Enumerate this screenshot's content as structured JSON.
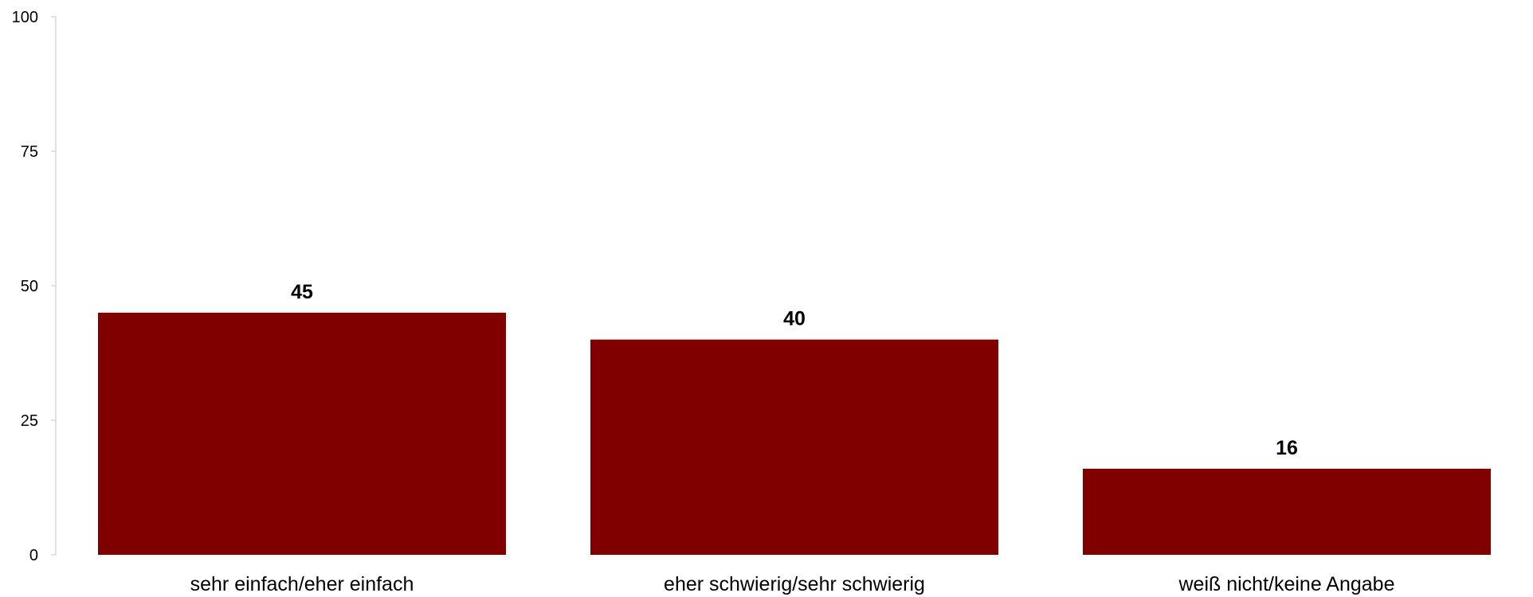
{
  "chart_data": {
    "type": "bar",
    "title": "",
    "xlabel": "",
    "ylabel": "",
    "categories": [
      "sehr einfach/eher einfach",
      "eher schwierig/sehr schwierig",
      "weiß nicht/keine Angabe"
    ],
    "values": [
      45,
      40,
      16
    ],
    "value_labels": [
      "45",
      "40",
      "16"
    ],
    "ylim": [
      0,
      100
    ],
    "yticks": [
      0,
      25,
      50,
      75,
      100
    ],
    "ytick_labels": [
      "0",
      "25",
      "50",
      "75",
      "100"
    ],
    "grid": false,
    "legend": "none",
    "bar_color": "#800000",
    "axis_color": "#d9d9d9"
  }
}
